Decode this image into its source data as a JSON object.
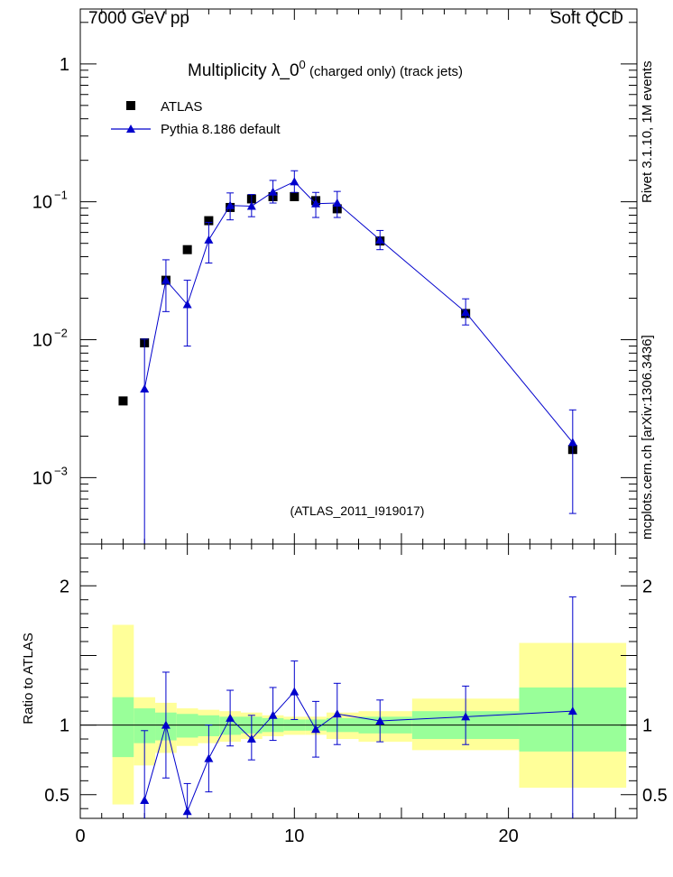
{
  "header": {
    "left_label": "7000 GeV pp",
    "right_label": "Soft QCD"
  },
  "side_labels": {
    "rivet": "Rivet 3.1.10, 1M events",
    "source": "mcplots.cern.ch [arXiv:1306.3436]"
  },
  "chart_data": [
    {
      "type": "scatter",
      "title_main": "Multiplicity  λ_0",
      "title_sup": "0",
      "title_suffix": " (charged only) (track jets)",
      "analysis_tag": "(ATLAS_2011_I919017)",
      "yscale": "log",
      "ylim": [
        0.00033,
        2.5
      ],
      "xlim": [
        0,
        26
      ],
      "y_ticks": [
        {
          "value": 1,
          "label": "1"
        },
        {
          "value": 0.1,
          "label": "10",
          "exp": "−1"
        },
        {
          "value": 0.01,
          "label": "10",
          "exp": "−2"
        },
        {
          "value": 0.001,
          "label": "10",
          "exp": "−3"
        }
      ],
      "legend_position": "top-left",
      "series": [
        {
          "name": "ATLAS",
          "marker": "square",
          "color": "#000000",
          "x": [
            2,
            3,
            4,
            5,
            6,
            7,
            8,
            9,
            10,
            11,
            12,
            14,
            18,
            23
          ],
          "y": [
            0.0036,
            0.0095,
            0.027,
            0.045,
            0.073,
            0.091,
            0.105,
            0.109,
            0.109,
            0.102,
            0.089,
            0.052,
            0.0155,
            0.0016
          ]
        },
        {
          "name": "Pythia 8.186 default",
          "marker": "triangle",
          "color": "#0000cc",
          "x": [
            3,
            4,
            5,
            6,
            7,
            8,
            9,
            10,
            11,
            12,
            14,
            18,
            23
          ],
          "y": [
            0.0044,
            0.027,
            0.018,
            0.053,
            0.094,
            0.093,
            0.118,
            0.14,
            0.097,
            0.098,
            0.053,
            0.0158,
            0.0018
          ],
          "err_low": [
            0.0042,
            0.011,
            0.009,
            0.017,
            0.02,
            0.015,
            0.02,
            0.023,
            0.02,
            0.021,
            0.008,
            0.003,
            0.00125
          ],
          "err_high": [
            0.0057,
            0.011,
            0.009,
            0.018,
            0.022,
            0.02,
            0.025,
            0.028,
            0.02,
            0.021,
            0.009,
            0.004,
            0.0013
          ]
        }
      ]
    },
    {
      "type": "scatter",
      "ylabel": "Ratio to ATLAS",
      "ylim": [
        0.33,
        2.3
      ],
      "xlim": [
        0,
        26
      ],
      "y_ticks": [
        {
          "value": 0.5,
          "label": "0.5"
        },
        {
          "value": 1,
          "label": "1"
        },
        {
          "value": 2,
          "label": "2"
        }
      ],
      "x_ticks": [
        {
          "value": 0,
          "label": "0"
        },
        {
          "value": 10,
          "label": "10"
        },
        {
          "value": 20,
          "label": "20"
        }
      ],
      "bands": [
        {
          "x0": 1.5,
          "x1": 2.5,
          "y_lo": 0.77,
          "y_hi": 1.2,
          "y_lo_outer": 0.43,
          "y_hi_outer": 1.72
        },
        {
          "x0": 2.5,
          "x1": 3.5,
          "y_lo": 0.87,
          "y_hi": 1.12,
          "y_lo_outer": 0.71,
          "y_hi_outer": 1.2
        },
        {
          "x0": 3.5,
          "x1": 4.5,
          "y_lo": 0.89,
          "y_hi": 1.09,
          "y_lo_outer": 0.8,
          "y_hi_outer": 1.16
        },
        {
          "x0": 4.5,
          "x1": 5.5,
          "y_lo": 0.91,
          "y_hi": 1.08,
          "y_lo_outer": 0.85,
          "y_hi_outer": 1.12
        },
        {
          "x0": 5.5,
          "x1": 6.5,
          "y_lo": 0.92,
          "y_hi": 1.07,
          "y_lo_outer": 0.87,
          "y_hi_outer": 1.11
        },
        {
          "x0": 6.5,
          "x1": 7.5,
          "y_lo": 0.93,
          "y_hi": 1.06,
          "y_lo_outer": 0.88,
          "y_hi_outer": 1.1
        },
        {
          "x0": 7.5,
          "x1": 8.5,
          "y_lo": 0.94,
          "y_hi": 1.06,
          "y_lo_outer": 0.9,
          "y_hi_outer": 1.09
        },
        {
          "x0": 8.5,
          "x1": 9.5,
          "y_lo": 0.95,
          "y_hi": 1.05,
          "y_lo_outer": 0.92,
          "y_hi_outer": 1.07
        },
        {
          "x0": 9.5,
          "x1": 10.5,
          "y_lo": 0.96,
          "y_hi": 1.04,
          "y_lo_outer": 0.93,
          "y_hi_outer": 1.06
        },
        {
          "x0": 10.5,
          "x1": 11.5,
          "y_lo": 0.96,
          "y_hi": 1.04,
          "y_lo_outer": 0.93,
          "y_hi_outer": 1.06
        },
        {
          "x0": 11.5,
          "x1": 13.0,
          "y_lo": 0.95,
          "y_hi": 1.05,
          "y_lo_outer": 0.9,
          "y_hi_outer": 1.09
        },
        {
          "x0": 13.0,
          "x1": 15.5,
          "y_lo": 0.94,
          "y_hi": 1.06,
          "y_lo_outer": 0.88,
          "y_hi_outer": 1.1
        },
        {
          "x0": 15.5,
          "x1": 20.5,
          "y_lo": 0.9,
          "y_hi": 1.1,
          "y_lo_outer": 0.82,
          "y_hi_outer": 1.19
        },
        {
          "x0": 20.5,
          "x1": 25.5,
          "y_lo": 0.81,
          "y_hi": 1.27,
          "y_lo_outer": 0.55,
          "y_hi_outer": 1.59
        }
      ],
      "series": [
        {
          "name": "Pythia 8.186 default",
          "marker": "triangle",
          "color": "#0000cc",
          "x": [
            3,
            4,
            5,
            6,
            7,
            8,
            9,
            10,
            11,
            12,
            14,
            18,
            23
          ],
          "y": [
            0.46,
            1.0,
            0.38,
            0.76,
            1.05,
            0.9,
            1.07,
            1.24,
            0.97,
            1.08,
            1.03,
            1.06,
            1.1
          ],
          "err_low": [
            0.5,
            0.38,
            0.2,
            0.24,
            0.2,
            0.15,
            0.18,
            0.2,
            0.2,
            0.22,
            0.15,
            0.2,
            0.8
          ],
          "err_high": [
            0.5,
            0.38,
            0.2,
            0.24,
            0.2,
            0.17,
            0.2,
            0.22,
            0.2,
            0.22,
            0.15,
            0.22,
            0.82
          ]
        }
      ]
    }
  ]
}
